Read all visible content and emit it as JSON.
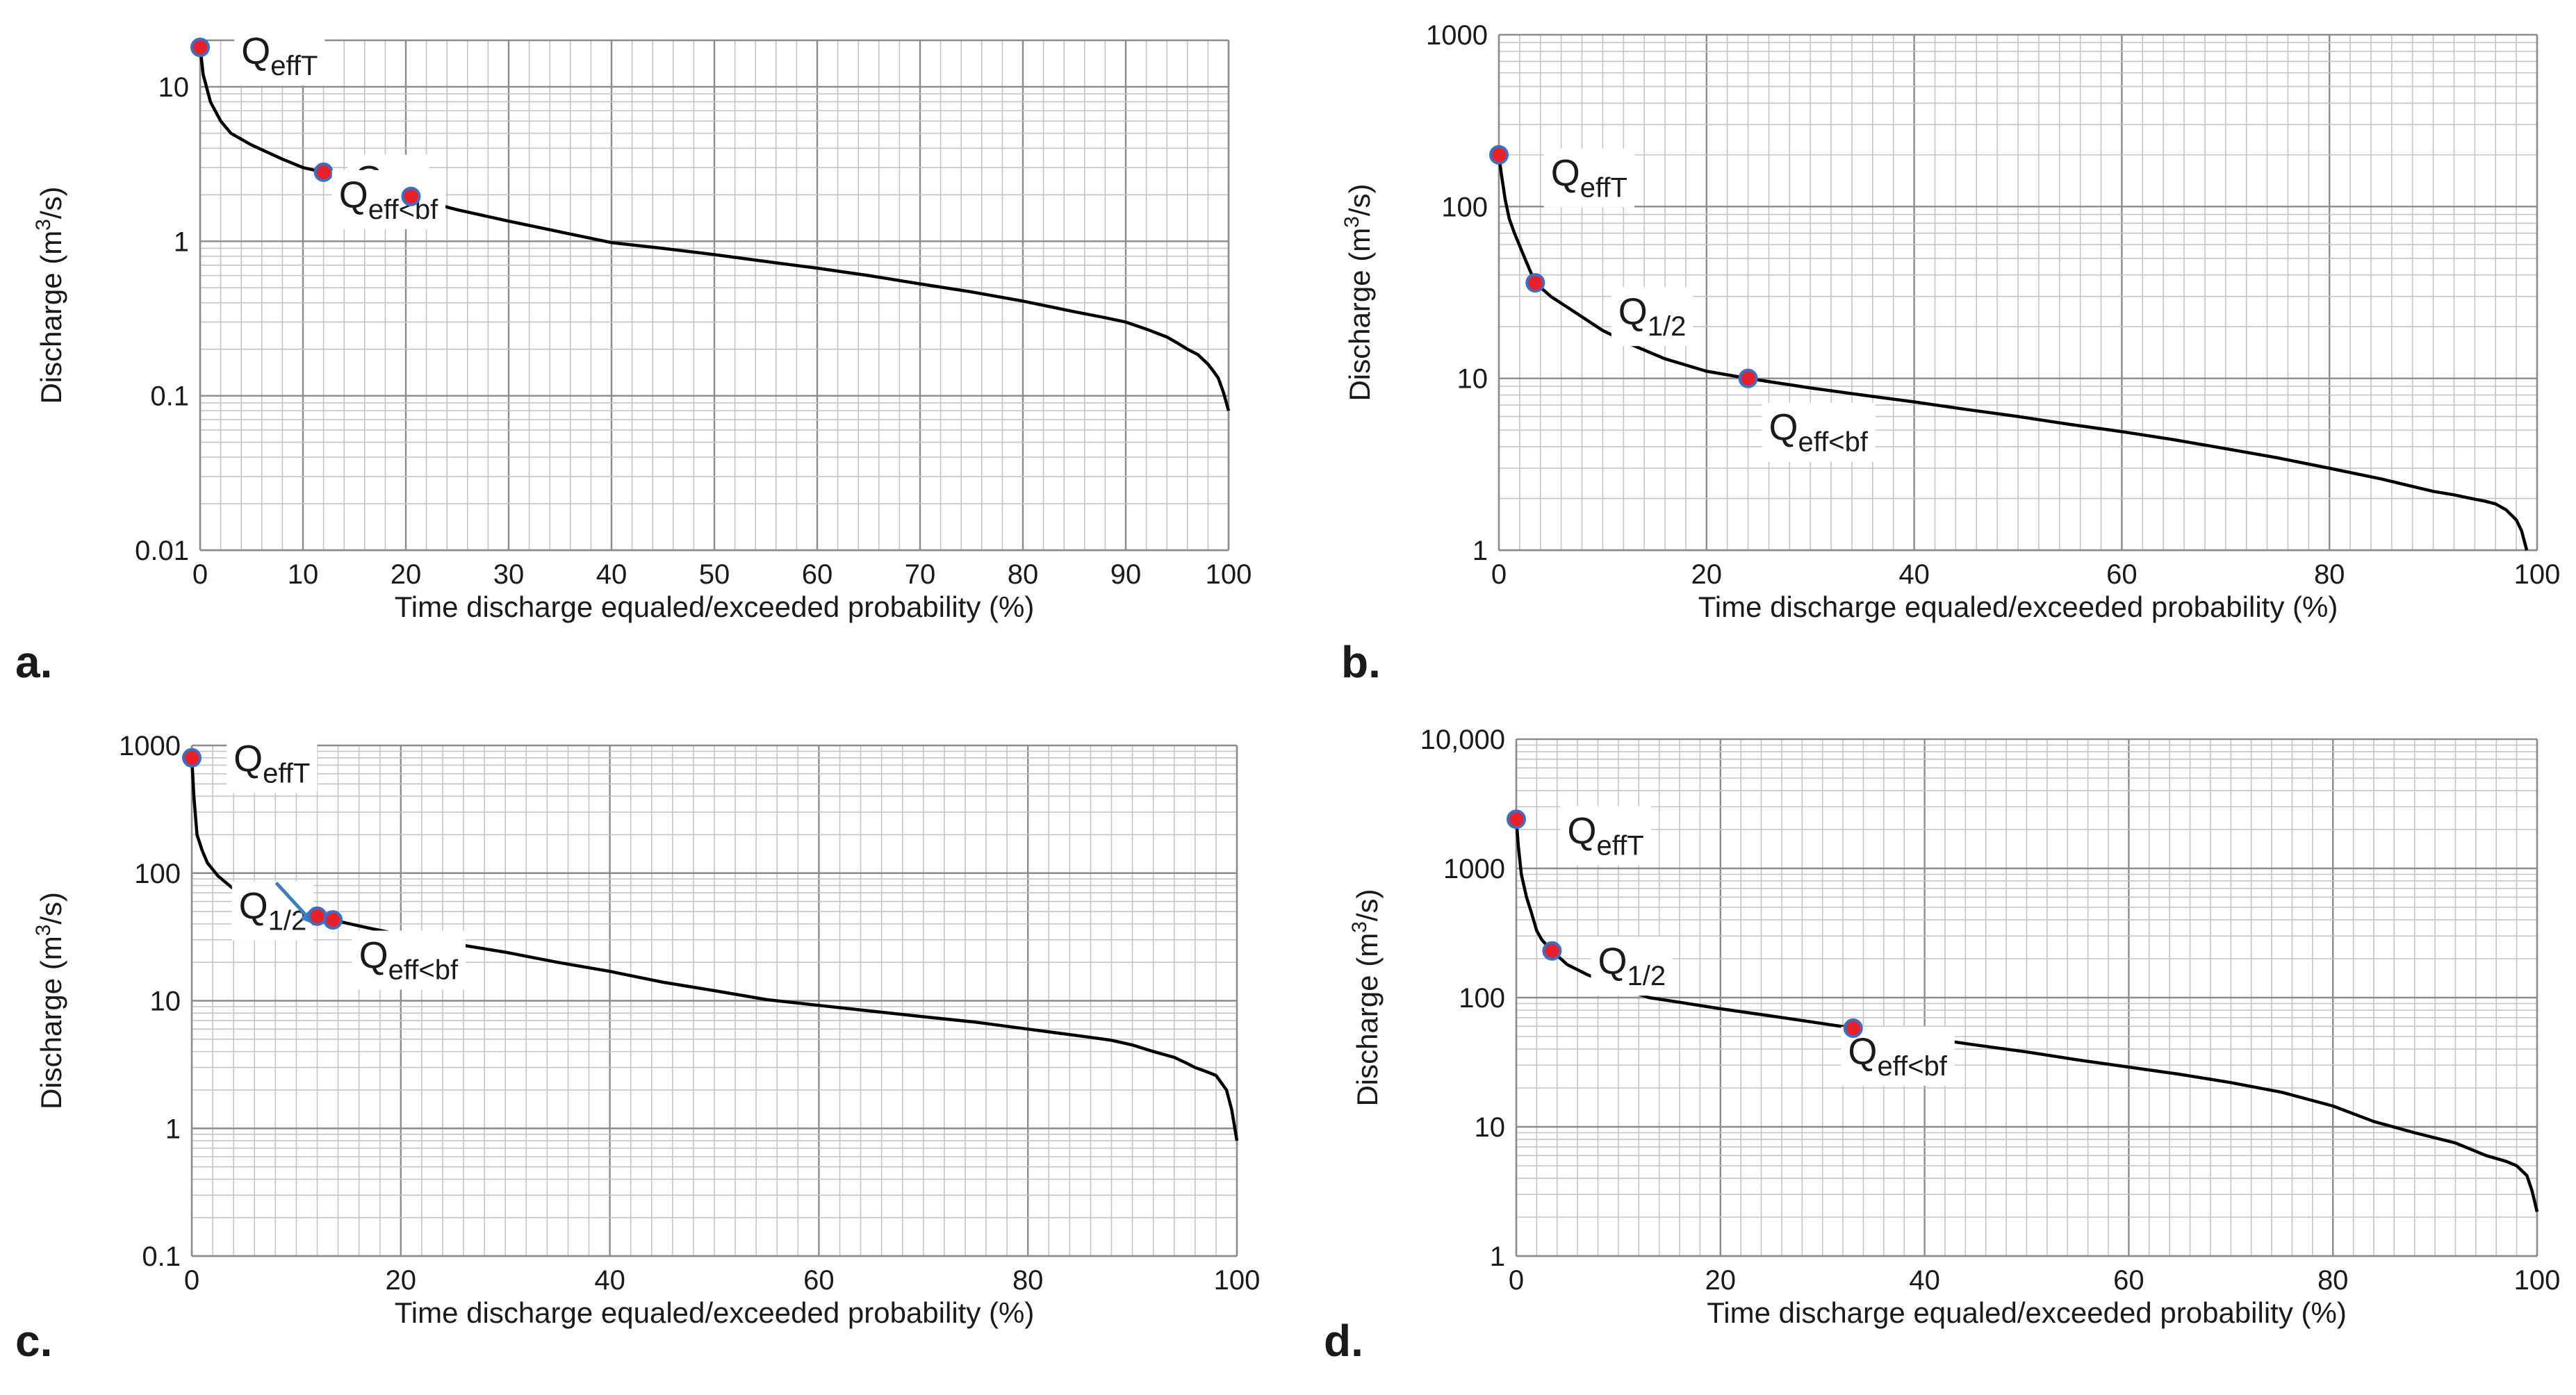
{
  "colors": {
    "curve": "#000000",
    "marker_fill": "#e8202a",
    "marker_edge": "#3b6fc4",
    "arrow": "#3b7fc4",
    "grid_major": "#8c8c8c",
    "grid_minor": "#c4c4c4"
  },
  "chart_data": [
    {
      "id": "a",
      "panel_label": "a.",
      "type": "line",
      "xlabel": "Time discharge equaled/exceeded probability (%)",
      "ylabel": "Discharge (m³/s)",
      "ylabel_parts": {
        "base": "Discharge (m",
        "sup": "3",
        "tail": "/s)"
      },
      "xlim": [
        0,
        100
      ],
      "ylim": [
        0.01,
        20
      ],
      "yscale": "log",
      "grid": true,
      "xticks": [
        0,
        10,
        20,
        30,
        40,
        50,
        60,
        70,
        80,
        90,
        100
      ],
      "xticklabels": [
        "0",
        "10",
        "20",
        "30",
        "40",
        "50",
        "60",
        "70",
        "80",
        "90",
        "100"
      ],
      "yticks": [
        0.01,
        0.1,
        1,
        10
      ],
      "yticklabels": [
        "0.01",
        "0.1",
        "1",
        "10"
      ],
      "series": [
        {
          "x": [
            0,
            0.3,
            1,
            2,
            3,
            5,
            8,
            10,
            12,
            15,
            18,
            20,
            25,
            30,
            35,
            40,
            45,
            50,
            55,
            60,
            65,
            70,
            75,
            80,
            85,
            88,
            90,
            92,
            94,
            95,
            96,
            97,
            98,
            98.5,
            99,
            99.5,
            100
          ],
          "y": [
            18,
            12,
            8,
            6,
            5,
            4.2,
            3.4,
            3.0,
            2.8,
            2.4,
            2.1,
            1.95,
            1.6,
            1.35,
            1.15,
            0.98,
            0.9,
            0.82,
            0.74,
            0.67,
            0.6,
            0.53,
            0.47,
            0.41,
            0.35,
            0.32,
            0.3,
            0.27,
            0.24,
            0.22,
            0.2,
            0.185,
            0.16,
            0.145,
            0.13,
            0.105,
            0.08
          ]
        }
      ],
      "markers": [
        {
          "label": "QeffT",
          "base": "Q",
          "sub": "effT",
          "x": 0,
          "y": 18,
          "dx": 4,
          "dy": 0.6
        },
        {
          "label": "Q1/2",
          "base": "Q",
          "sub": "1/2",
          "x": 12,
          "y": 2.8,
          "dx": 3,
          "dy": 0.72
        },
        {
          "label": "Qeff<bf",
          "base": "Q",
          "sub": "eff<bf",
          "x": 20.5,
          "y": 1.95,
          "dx": -7,
          "dy": 0.4
        }
      ]
    },
    {
      "id": "b",
      "panel_label": "b.",
      "type": "line",
      "xlabel": "Time discharge equaled/exceeded probability (%)",
      "ylabel": "Discharge (m³/s)",
      "ylabel_parts": {
        "base": "Discharge (m",
        "sup": "3",
        "tail": "/s)"
      },
      "xlim": [
        0,
        100
      ],
      "ylim": [
        1,
        1000
      ],
      "yscale": "log",
      "grid": true,
      "xticks": [
        0,
        20,
        40,
        60,
        80,
        100
      ],
      "xticklabels": [
        "0",
        "20",
        "40",
        "60",
        "80",
        "100"
      ],
      "yticks": [
        1,
        10,
        100,
        1000
      ],
      "yticklabels": [
        "1",
        "10",
        "100",
        "1000"
      ],
      "series": [
        {
          "x": [
            0,
            0.2,
            0.6,
            1,
            1.5,
            2.5,
            3.5,
            5,
            7,
            10,
            13,
            16,
            20,
            24,
            30,
            35,
            40,
            45,
            50,
            55,
            60,
            65,
            70,
            75,
            80,
            85,
            88,
            90,
            92,
            94,
            95,
            96,
            97,
            98,
            98.5,
            99
          ],
          "y": [
            200,
            160,
            110,
            85,
            70,
            50,
            36,
            30,
            25,
            19,
            15.5,
            13,
            11,
            10,
            8.8,
            8.0,
            7.3,
            6.6,
            6.0,
            5.4,
            4.9,
            4.4,
            3.9,
            3.45,
            3.0,
            2.6,
            2.35,
            2.2,
            2.1,
            1.98,
            1.93,
            1.86,
            1.72,
            1.5,
            1.3,
            1.0
          ]
        }
      ],
      "markers": [
        {
          "label": "QeffT",
          "base": "Q",
          "sub": "effT",
          "x": 0,
          "y": 200,
          "dx": 5,
          "dy": 1.0
        },
        {
          "label": "Q1/2",
          "base": "Q",
          "sub": "1/2",
          "x": 3.5,
          "y": 36,
          "dx": 8,
          "dy": 1.35
        },
        {
          "label": "Qeff<bf",
          "base": "Q",
          "sub": "eff<bf",
          "x": 24,
          "y": 10,
          "dx": 2,
          "dy": 2.0
        }
      ]
    },
    {
      "id": "c",
      "panel_label": "c.",
      "type": "line",
      "xlabel": "Time discharge equaled/exceeded probability (%)",
      "ylabel": "Discharge (m³/s)",
      "ylabel_parts": {
        "base": "Discharge (m",
        "sup": "3",
        "tail": "/s)"
      },
      "xlim": [
        0,
        100
      ],
      "ylim": [
        0.1,
        1000
      ],
      "yscale": "log",
      "grid": true,
      "xticks": [
        0,
        20,
        40,
        60,
        80,
        100
      ],
      "xticklabels": [
        "0",
        "20",
        "40",
        "60",
        "80",
        "100"
      ],
      "yticks": [
        0.1,
        1,
        10,
        100,
        1000
      ],
      "yticklabels": [
        "0.1",
        "1",
        "10",
        "100",
        "1000"
      ],
      "series": [
        {
          "x": [
            0,
            0.2,
            0.5,
            1,
            1.5,
            2.5,
            4,
            6,
            8,
            10,
            12,
            14,
            17,
            20,
            25,
            30,
            35,
            40,
            45,
            50,
            55,
            60,
            65,
            70,
            75,
            80,
            85,
            88,
            90,
            92,
            94,
            95,
            96,
            97,
            98,
            99,
            99.5,
            100
          ],
          "y": [
            800,
            400,
            200,
            150,
            120,
            95,
            75,
            64,
            56,
            50,
            46,
            42,
            37,
            33,
            28,
            24,
            20,
            17,
            14,
            12,
            10.2,
            9.2,
            8.3,
            7.5,
            6.8,
            6.0,
            5.3,
            4.9,
            4.5,
            4.0,
            3.6,
            3.3,
            3.0,
            2.8,
            2.6,
            2.0,
            1.4,
            0.8
          ]
        }
      ],
      "markers": [
        {
          "label": "QeffT",
          "base": "Q",
          "sub": "effT",
          "x": 0,
          "y": 800,
          "dx": 4,
          "dy": 0.6
        },
        {
          "label": "Q1/2",
          "base": "Q",
          "sub": "1/2",
          "x": 12,
          "y": 46,
          "dx": -7.5,
          "dy": 0.12,
          "arrow": true
        },
        {
          "label": "Qeff<bf",
          "base": "Q",
          "sub": "eff<bf",
          "x": 13.5,
          "y": 43,
          "dx": 2.5,
          "dy": 2.1
        }
      ]
    },
    {
      "id": "d",
      "panel_label": "d.",
      "type": "line",
      "xlabel": "Time discharge equaled/exceeded probability (%)",
      "ylabel": "Discharge (m³/s)",
      "ylabel_parts": {
        "base": "Discharge (m",
        "sup": "3",
        "tail": "/s)"
      },
      "xlim": [
        0,
        100
      ],
      "ylim": [
        1,
        10000
      ],
      "yscale": "log",
      "grid": true,
      "xticks": [
        0,
        20,
        40,
        60,
        80,
        100
      ],
      "xticklabels": [
        "0",
        "20",
        "40",
        "60",
        "80",
        "100"
      ],
      "yticks": [
        1,
        10,
        100,
        1000,
        10000
      ],
      "yticklabels": [
        "1",
        "10",
        "100",
        "1000",
        "10,000"
      ],
      "series": [
        {
          "x": [
            0,
            0.2,
            0.5,
            1,
            1.5,
            2,
            2.5,
            3.5,
            5,
            7,
            10,
            13,
            16,
            20,
            25,
            30,
            33,
            36,
            40,
            45,
            50,
            55,
            60,
            65,
            70,
            75,
            80,
            84,
            88,
            92,
            95,
            97,
            98,
            99,
            99.5,
            100
          ],
          "y": [
            2400,
            1500,
            900,
            600,
            450,
            330,
            280,
            230,
            180,
            150,
            120,
            100,
            92,
            82,
            72,
            63,
            58,
            54,
            49,
            43,
            38,
            33,
            29,
            25.5,
            22,
            18.5,
            14.5,
            11,
            9,
            7.5,
            6.0,
            5.4,
            5.0,
            4.2,
            3.2,
            2.2
          ]
        }
      ],
      "markers": [
        {
          "label": "QeffT",
          "base": "Q",
          "sub": "effT",
          "x": 0,
          "y": 2400,
          "dx": 5,
          "dy": 1.05
        },
        {
          "label": "Q1/2",
          "base": "Q",
          "sub": "1/2",
          "x": 3.5,
          "y": 230,
          "dx": 4.5,
          "dy": 1.0
        },
        {
          "label": "Qeff<bf",
          "base": "Q",
          "sub": "eff<bf",
          "x": 33,
          "y": 58,
          "dx": -0.5,
          "dy": 1.55
        }
      ]
    }
  ]
}
